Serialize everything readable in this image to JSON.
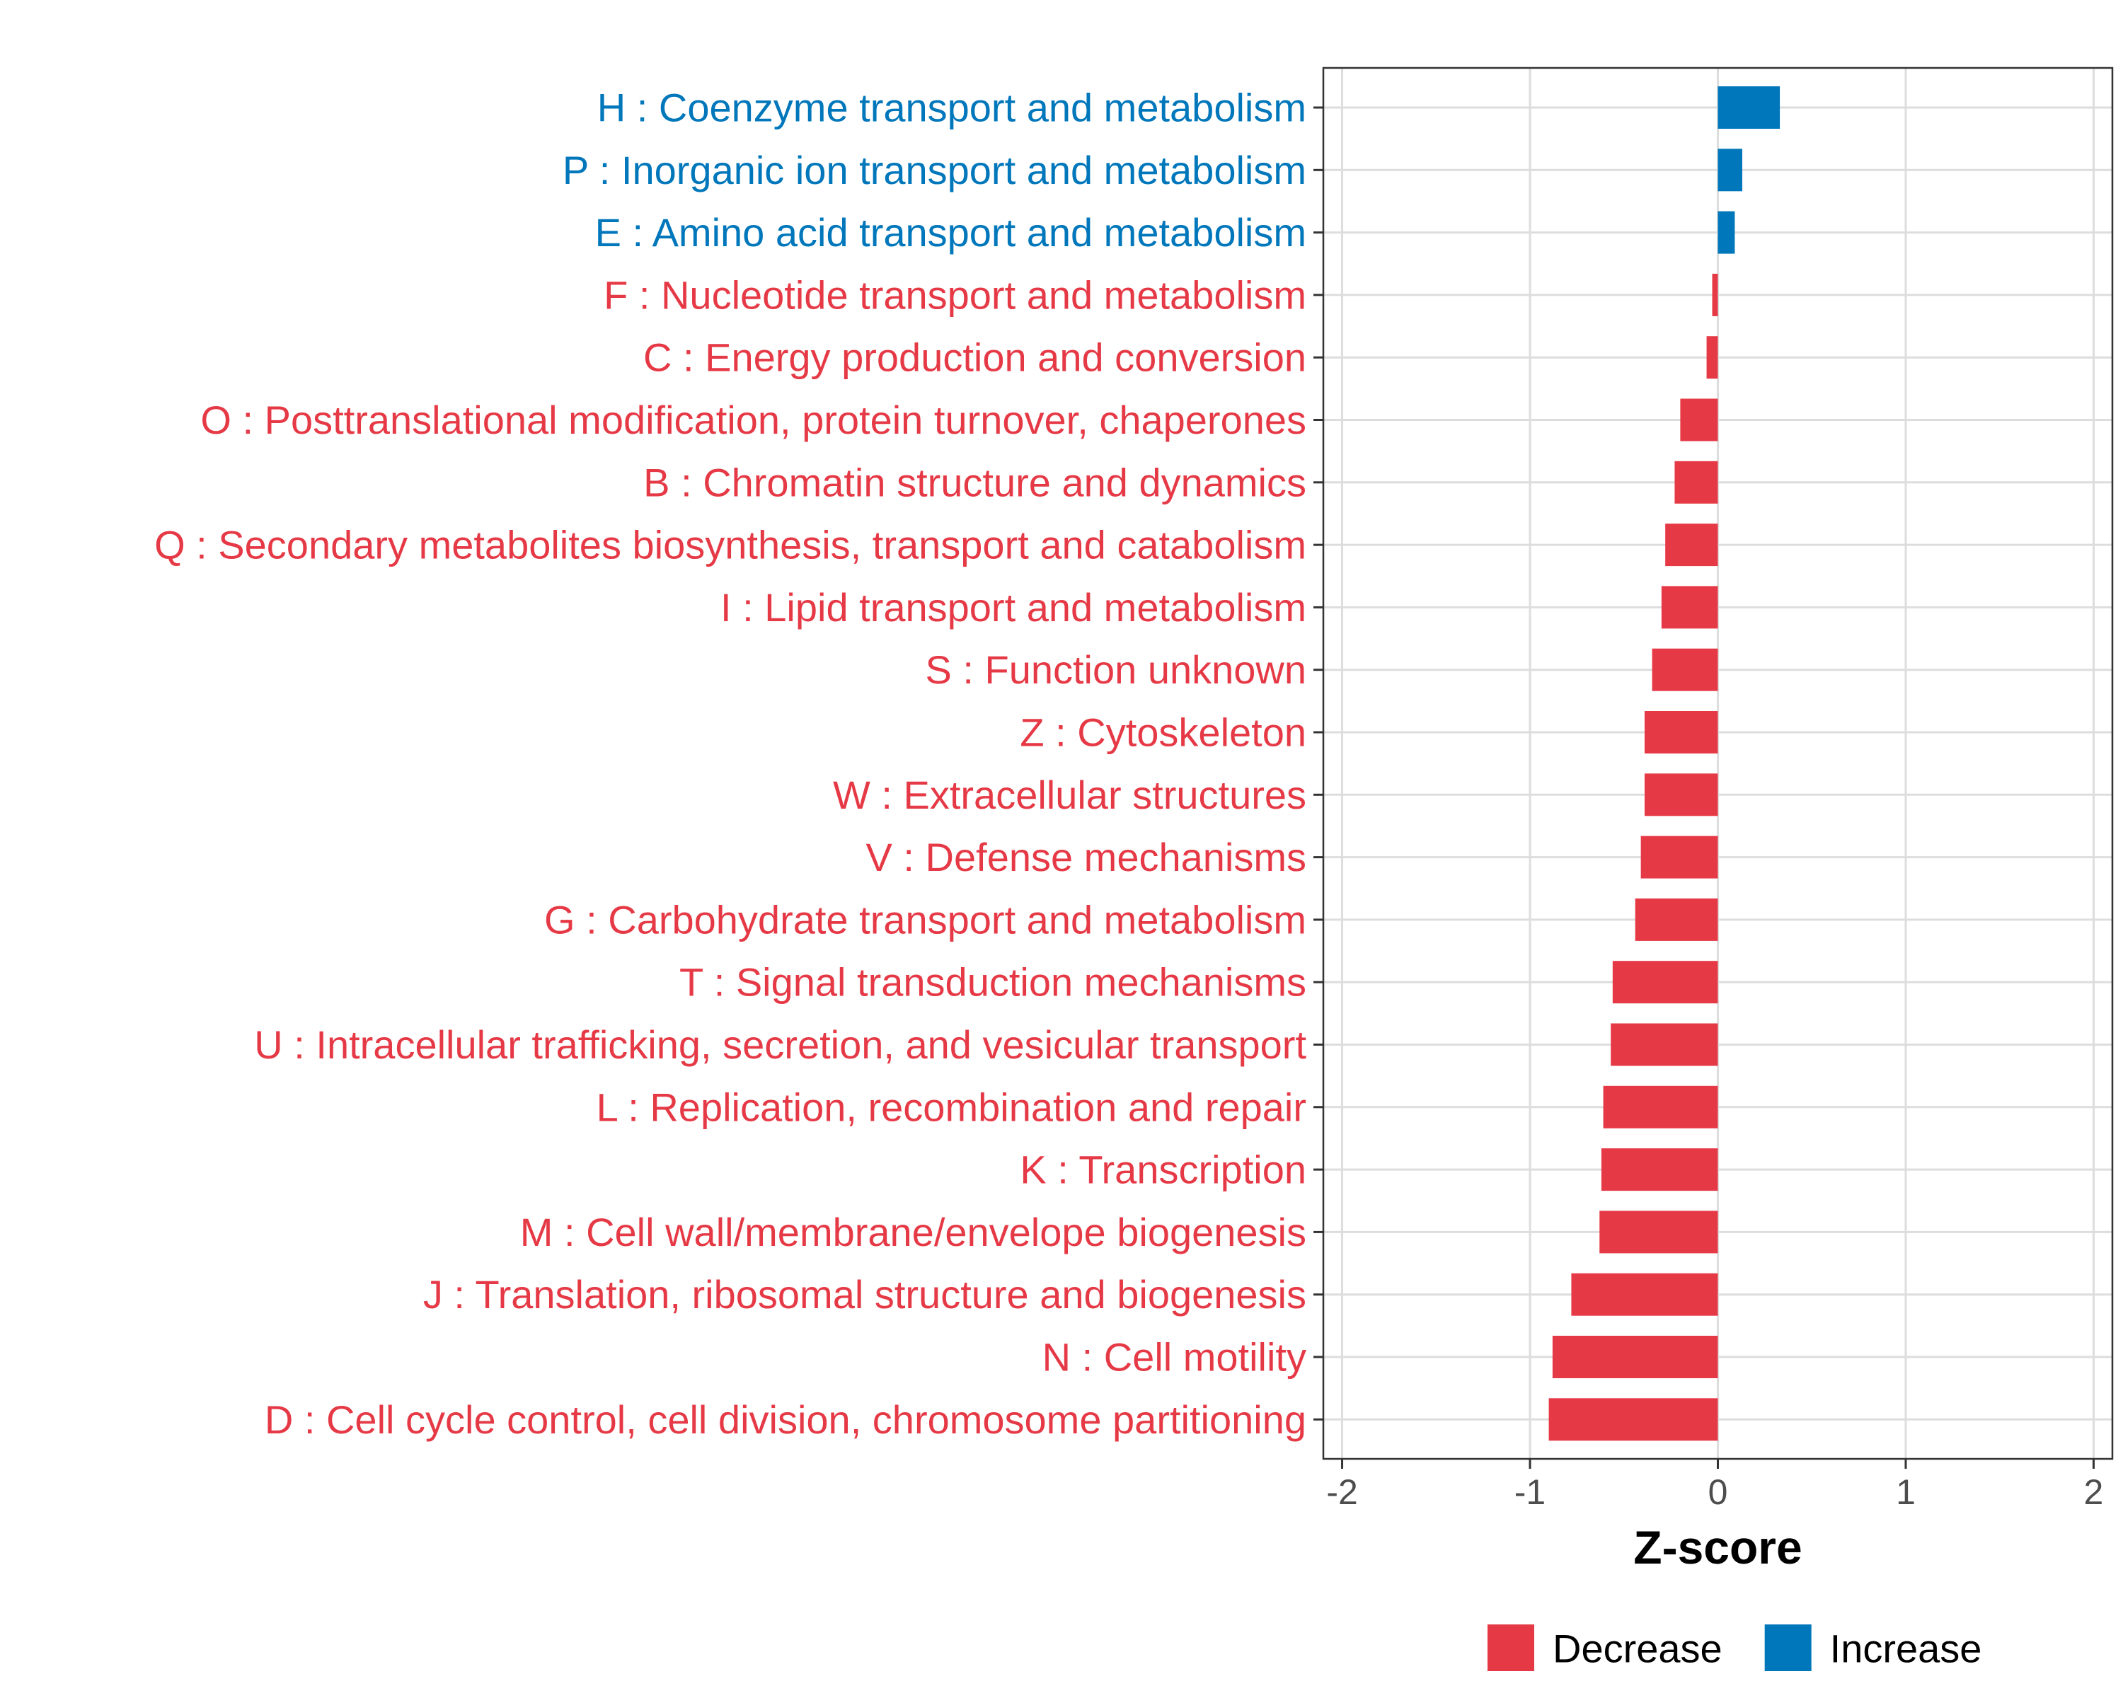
{
  "chart_data": {
    "type": "bar",
    "orientation": "horizontal",
    "title": "",
    "xlabel": "Z-score",
    "ylabel": "",
    "xlim": [
      -2.1,
      2.1
    ],
    "xticks": [
      -2,
      -1,
      0,
      1,
      2
    ],
    "xtick_labels": [
      "-2",
      "-1",
      "0",
      "1",
      "2"
    ],
    "grid": true,
    "legend_position": "bottom",
    "colors": {
      "Decrease": "#E63946",
      "Increase": "#0077BB"
    },
    "legend": [
      {
        "key": "Decrease",
        "label": "Decrease"
      },
      {
        "key": "Increase",
        "label": "Increase"
      }
    ],
    "categories": [
      "H : Coenzyme transport and metabolism",
      "P : Inorganic ion transport and metabolism",
      "E : Amino acid transport and metabolism",
      "F : Nucleotide transport and metabolism",
      "C : Energy production and conversion",
      "O : Posttranslational modification, protein turnover, chaperones",
      "B : Chromatin structure and dynamics",
      "Q : Secondary metabolites biosynthesis, transport and catabolism",
      "I : Lipid transport and metabolism",
      "S : Function unknown",
      "Z : Cytoskeleton",
      "W : Extracellular structures",
      "V : Defense mechanisms",
      "G : Carbohydrate transport and metabolism",
      "T : Signal transduction mechanisms",
      "U : Intracellular trafficking, secretion, and vesicular transport",
      "L : Replication, recombination and repair",
      "K : Transcription",
      "M : Cell wall/membrane/envelope biogenesis",
      "J : Translation, ribosomal structure and biogenesis",
      "N : Cell motility",
      "D : Cell cycle control, cell division, chromosome partitioning"
    ],
    "values": [
      0.33,
      0.13,
      0.09,
      -0.03,
      -0.06,
      -0.2,
      -0.23,
      -0.28,
      -0.3,
      -0.35,
      -0.39,
      -0.39,
      -0.41,
      -0.44,
      -0.56,
      -0.57,
      -0.61,
      -0.62,
      -0.63,
      -0.78,
      -0.88,
      -0.9
    ],
    "direction": [
      "Increase",
      "Increase",
      "Increase",
      "Decrease",
      "Decrease",
      "Decrease",
      "Decrease",
      "Decrease",
      "Decrease",
      "Decrease",
      "Decrease",
      "Decrease",
      "Decrease",
      "Decrease",
      "Decrease",
      "Decrease",
      "Decrease",
      "Decrease",
      "Decrease",
      "Decrease",
      "Decrease",
      "Decrease"
    ]
  }
}
